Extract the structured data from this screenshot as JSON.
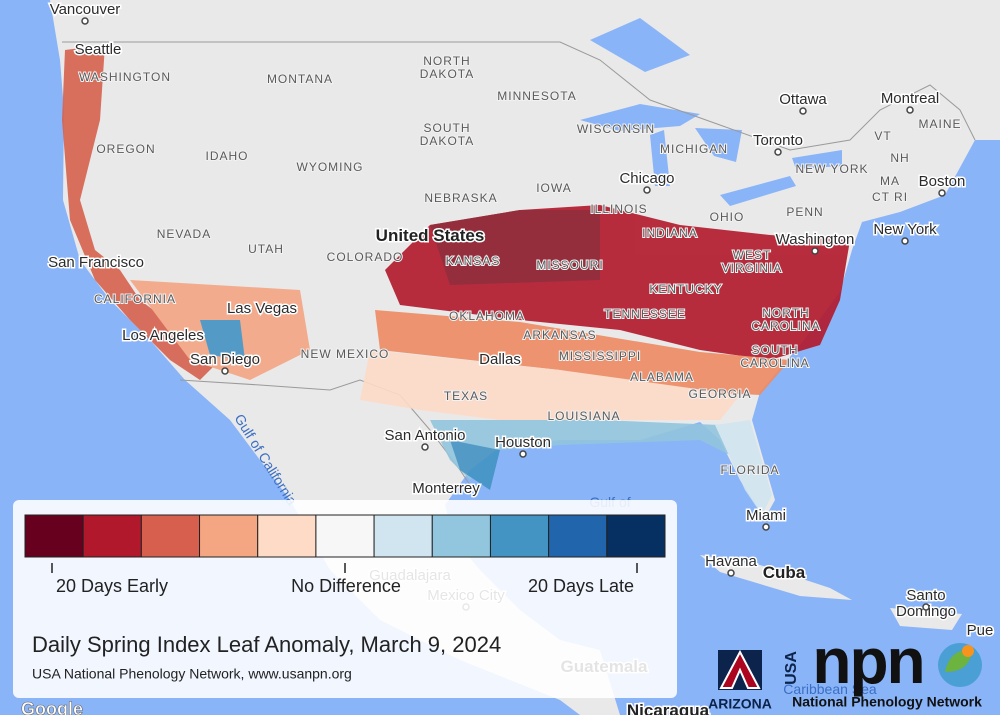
{
  "cities": [
    [
      "Vancouver"
    ],
    [
      "Seattle"
    ],
    [
      "Ottawa"
    ],
    [
      "Montreal"
    ],
    [
      "Toronto"
    ],
    [
      "Boston"
    ],
    [
      "Chicago"
    ],
    [
      "New York"
    ],
    [
      "Washington"
    ],
    [
      "San Francisco"
    ],
    [
      "Las Vegas"
    ],
    [
      "Los Angeles"
    ],
    [
      "Dallas"
    ],
    [
      "San Diego"
    ],
    [
      "San Antonio"
    ],
    [
      "Houston"
    ],
    [
      "Monterrey"
    ],
    [
      "Miami"
    ],
    [
      "Havana"
    ],
    [
      "Guadalajara"
    ],
    [
      "Mexico City"
    ],
    [
      "Santo",
      "Domingo"
    ],
    [
      "Pue"
    ]
  ],
  "states": [
    [
      "WASHINGTON"
    ],
    [
      "MONTANA"
    ],
    [
      "NORTH",
      "DAKOTA"
    ],
    [
      "MINNESOTA"
    ],
    [
      "MAINE"
    ],
    [
      "VT"
    ],
    [
      "NH"
    ],
    [
      "MA"
    ],
    [
      "CT RI"
    ],
    [
      "NEW YORK"
    ],
    [
      "WISCONSIN"
    ],
    [
      "MICHIGAN"
    ],
    [
      "SOUTH",
      "DAKOTA"
    ],
    [
      "OREGON"
    ],
    [
      "IDAHO"
    ],
    [
      "WYOMING"
    ],
    [
      "IOWA"
    ],
    [
      "NEBRASKA"
    ],
    [
      "ILLINOIS"
    ],
    [
      "INDIANA"
    ],
    [
      "OHIO"
    ],
    [
      "PENN"
    ],
    [
      "NEVADA"
    ],
    [
      "UTAH"
    ],
    [
      "COLORADO"
    ],
    [
      "KANSAS"
    ],
    [
      "MISSOURI"
    ],
    [
      "WEST",
      "VIRGINIA"
    ],
    [
      "KENTUCKY"
    ],
    [
      "CALIFORNIA"
    ],
    [
      "OKLAHOMA"
    ],
    [
      "TENNESSEE"
    ],
    [
      "NORTH",
      "CAROLINA"
    ],
    [
      "ARKANSAS"
    ],
    [
      "NEW MEXICO"
    ],
    [
      "SOUTH",
      "CAROLINA"
    ],
    [
      "MISSISSIPPI"
    ],
    [
      "ALABAMA"
    ],
    [
      "GEORGIA"
    ],
    [
      "TEXAS"
    ],
    [
      "LOUISIANA"
    ],
    [
      "FLORIDA"
    ]
  ],
  "countries": [
    [
      "United States"
    ],
    [
      "Cuba"
    ],
    [
      "Guatemala"
    ],
    [
      "Nicaragua"
    ]
  ],
  "water": [
    [
      "Gulf of California"
    ],
    [
      "Gulf of"
    ],
    [
      "Caribbean Sea"
    ]
  ],
  "legend": {
    "colors": [
      "#67001f",
      "#b2182b",
      "#d6604d",
      "#f4a582",
      "#fddbc7",
      "#f7f7f7",
      "#d1e5f0",
      "#92c5de",
      "#4393c3",
      "#2166ac",
      "#053061"
    ],
    "labels": [
      "20 Days Early",
      "No Difference",
      "20 Days Late"
    ]
  },
  "title": "Daily Spring Index Leaf Anomaly, March 9, 2024",
  "credit": "USA National Phenology Network, www.usanpn.org",
  "logos": {
    "university": "ARIZONA",
    "usa": "USA",
    "npn": "npn",
    "network": "National Phenology Network"
  },
  "attribution": "Google"
}
